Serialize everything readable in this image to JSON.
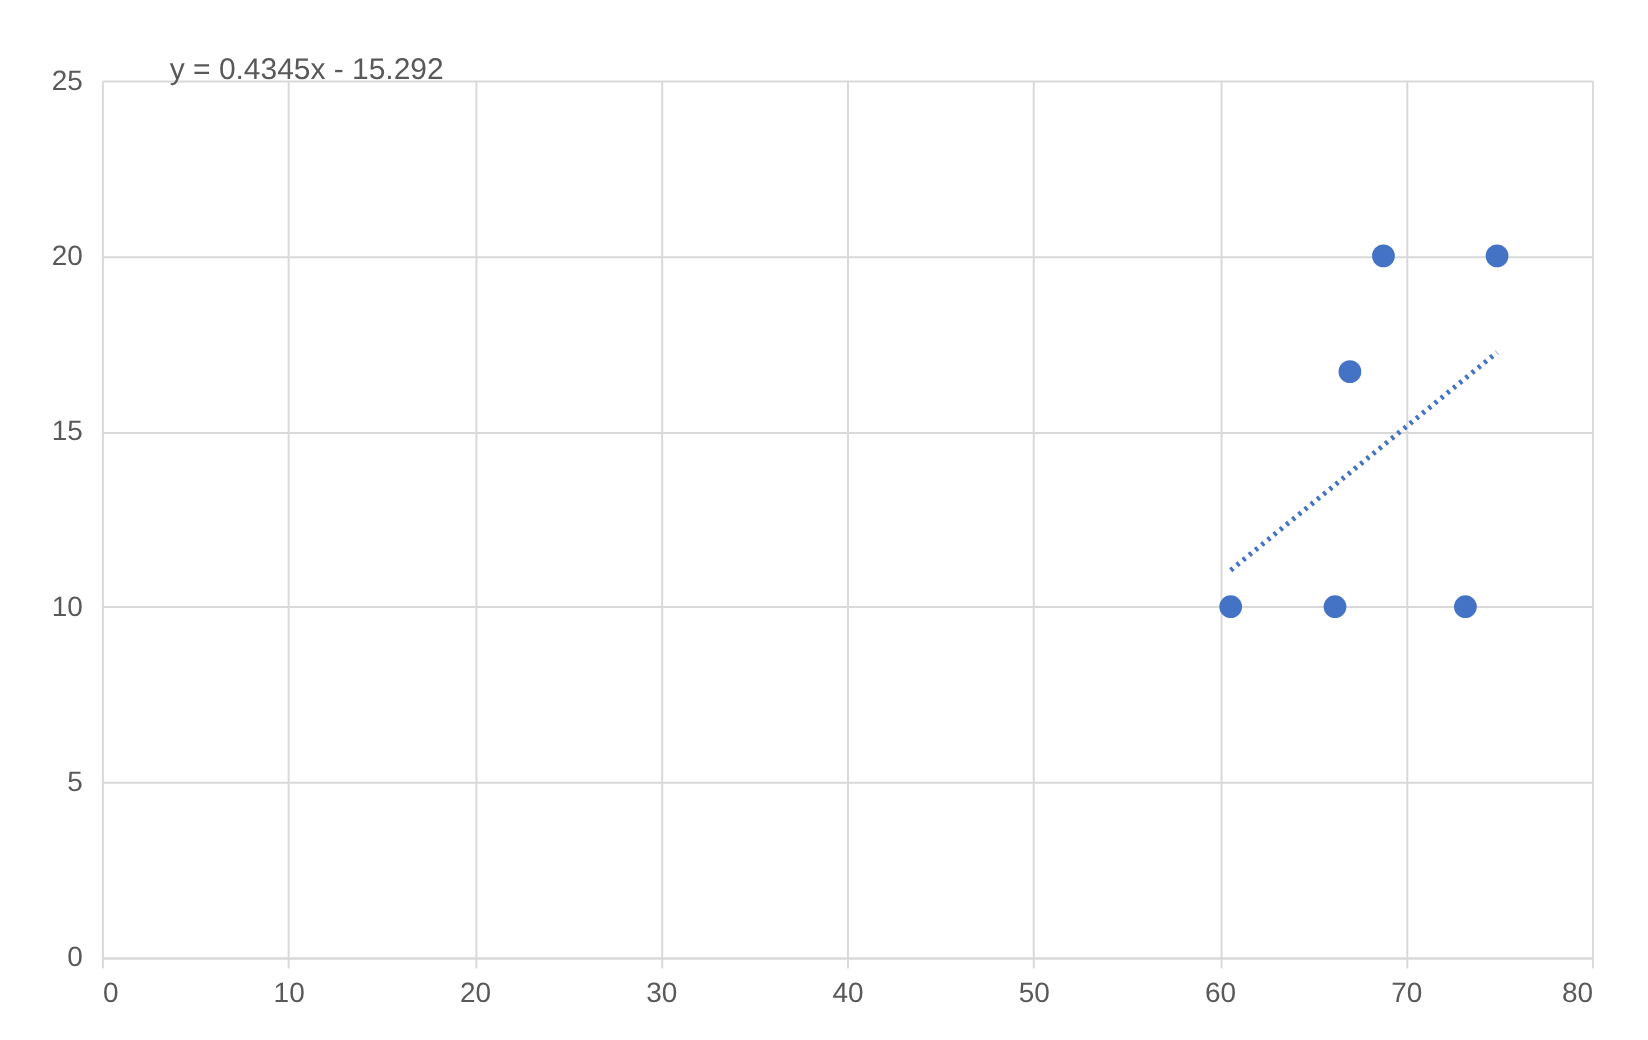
{
  "chart_data": {
    "type": "scatter",
    "series": [
      {
        "color": "#4472c4",
        "marker": "circle",
        "x": [
          60.6,
          66.2,
          67.0,
          68.8,
          73.2,
          74.9
        ],
        "values": [
          10,
          10,
          16.7,
          20,
          10,
          20
        ]
      },
      {
        "type": "line",
        "color": "#4472c4",
        "line_style": "dotted",
        "x": [
          60.6,
          74.9
        ],
        "values": [
          11.04,
          17.25
        ]
      }
    ],
    "xlim": [
      0,
      80
    ],
    "xticks": [
      0,
      10,
      20,
      30,
      40,
      50,
      60,
      70,
      80
    ],
    "ylim": [
      0,
      25
    ],
    "yticks": [
      0,
      5,
      10,
      15,
      20,
      25
    ],
    "grid": true,
    "annotations": [
      "y = 0.4345x - 15.292"
    ]
  }
}
